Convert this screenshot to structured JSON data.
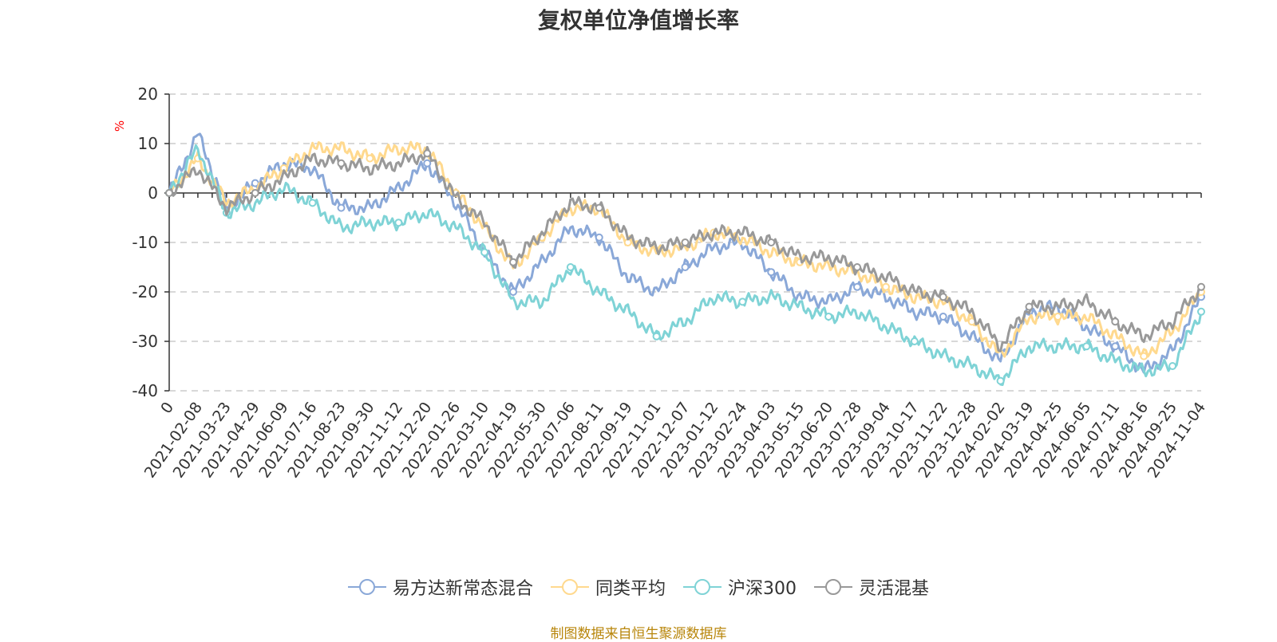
{
  "chart_data": {
    "type": "line",
    "title": "复权单位净值增长率",
    "ylabel": "%",
    "ylim": [
      -40,
      20
    ],
    "yticks": [
      "20",
      "10",
      "0",
      "-10",
      "-20",
      "-30",
      "-40"
    ],
    "categories": [
      "0",
      "2021-02-08",
      "2021-03-23",
      "2021-04-29",
      "2021-06-09",
      "2021-07-16",
      "2021-08-23",
      "2021-09-30",
      "2021-11-12",
      "2021-12-20",
      "2022-01-26",
      "2022-03-10",
      "2022-04-19",
      "2022-05-30",
      "2022-07-06",
      "2022-08-11",
      "2022-09-19",
      "2022-11-01",
      "2022-12-07",
      "2023-01-12",
      "2023-02-24",
      "2023-04-03",
      "2023-05-15",
      "2023-06-20",
      "2023-07-28",
      "2023-09-04",
      "2023-10-17",
      "2023-11-22",
      "2023-12-28",
      "2024-02-02",
      "2024-03-19",
      "2024-04-25",
      "2024-06-05",
      "2024-07-11",
      "2024-08-16",
      "2024-09-25",
      "2024-11-04"
    ],
    "series": [
      {
        "name": "易方达新常态混合",
        "color": "#8aa8d8",
        "values": [
          0,
          12,
          -3,
          2,
          6,
          5,
          -3,
          -3,
          1,
          6,
          -2,
          -12,
          -20,
          -14,
          -7,
          -9,
          -17,
          -20,
          -15,
          -11,
          -10,
          -16,
          -21,
          -22,
          -19,
          -21,
          -24,
          -25,
          -29,
          -34,
          -24,
          -23,
          -27,
          -31,
          -36,
          -32,
          -21
        ]
      },
      {
        "name": "同类平均",
        "color": "#ffd98e",
        "values": [
          0,
          7,
          -2,
          1,
          5,
          9,
          9,
          7,
          9,
          9,
          0,
          -7,
          -15,
          -9,
          -3,
          -3,
          -10,
          -12,
          -11,
          -8,
          -9,
          -12,
          -14,
          -15,
          -16,
          -19,
          -21,
          -22,
          -26,
          -33,
          -25,
          -25,
          -25,
          -29,
          -33,
          -28,
          -20
        ]
      },
      {
        "name": "沪深300",
        "color": "#7fd3d6",
        "values": [
          0,
          9,
          -4,
          -2,
          1,
          -2,
          -7,
          -6,
          -6,
          -4,
          -7,
          -12,
          -22,
          -22,
          -15,
          -20,
          -24,
          -29,
          -26,
          -21,
          -22,
          -21,
          -23,
          -25,
          -24,
          -27,
          -30,
          -33,
          -35,
          -38,
          -31,
          -31,
          -31,
          -34,
          -36,
          -35,
          -24
        ]
      },
      {
        "name": "灵活混基",
        "color": "#999999",
        "values": [
          0,
          5,
          -3,
          0,
          3,
          7,
          6,
          5,
          6,
          8,
          -1,
          -6,
          -14,
          -8,
          -2,
          -3,
          -9,
          -11,
          -10,
          -8,
          -8,
          -10,
          -13,
          -13,
          -15,
          -17,
          -20,
          -21,
          -24,
          -31,
          -23,
          -23,
          -22,
          -26,
          -29,
          -26,
          -19
        ]
      }
    ]
  },
  "legend": [
    "易方达新常态混合",
    "同类平均",
    "沪深300",
    "灵活混基"
  ],
  "source": "制图数据来自恒生聚源数据库"
}
